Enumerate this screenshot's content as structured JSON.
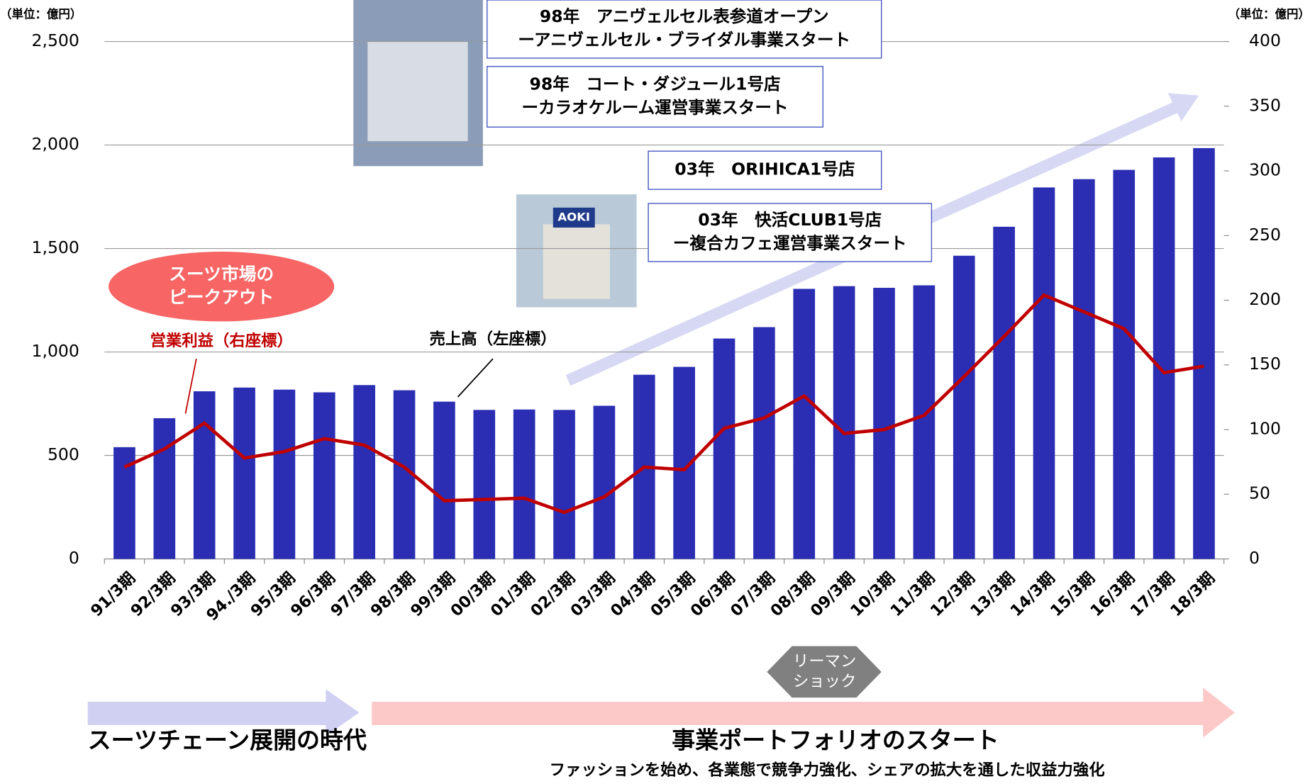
{
  "chart_data": {
    "type": "bar_line",
    "y_unit_label": "（単位：億円）",
    "y2_unit_label": "（単位：億円）",
    "categories": [
      "91/3期",
      "92/3期",
      "93/3期",
      "94./3期",
      "95/3期",
      "96/3期",
      "97/3期",
      "98/3期",
      "99/3期",
      "00/3期",
      "01/3期",
      "02/3期",
      "03/3期",
      "04/3期",
      "05/3期",
      "06/3期",
      "07/3期",
      "08/3期",
      "09/3期",
      "10/3期",
      "11/3期",
      "12/3期",
      "13/3期",
      "14/3期",
      "15/3期",
      "16/3期",
      "17/3期",
      "18/3期"
    ],
    "series": [
      {
        "name": "売上高（左座標）",
        "color": "#2b2eb3",
        "type": "bar",
        "values": [
          540,
          680,
          810,
          828,
          818,
          805,
          840,
          815,
          760,
          720,
          722,
          720,
          740,
          890,
          928,
          1065,
          1120,
          1305,
          1318,
          1310,
          1322,
          1465,
          1605,
          1795,
          1835,
          1880,
          1940,
          1985
        ]
      },
      {
        "name": "営業利益（右座標）",
        "color": "#c00000",
        "type": "line",
        "axis": "y2",
        "values": [
          71,
          85,
          105,
          78,
          83,
          93,
          88,
          71,
          45,
          46,
          47,
          36,
          48,
          71,
          69,
          101,
          109,
          126,
          97,
          100,
          111,
          141,
          172,
          204,
          191,
          178,
          144,
          149
        ]
      }
    ],
    "ylim": [
      0,
      2500
    ],
    "yticks": [
      0,
      500,
      {
        "value": 1000,
        "label": "1,000"
      },
      {
        "value": 1500,
        "label": "1,500"
      },
      {
        "value": 2000,
        "label": "2,000"
      },
      {
        "value": 2500,
        "label": "2,500"
      }
    ],
    "y2lim": [
      0,
      400
    ],
    "y2ticks": [
      0,
      50,
      100,
      150,
      200,
      250,
      300,
      350,
      400
    ],
    "grid": true,
    "boxes": [
      {
        "lines": [
          "98年　アニヴェルセル表参道オープン",
          "ーアニヴェルセル・ブライダル事業スタート"
        ]
      },
      {
        "lines": [
          "98年　コート・ダジュール1号店",
          "ーカラオケルーム運営事業スタート"
        ]
      },
      {
        "lines": [
          "03年　ORIHICA1号店"
        ]
      },
      {
        "lines": [
          "03年　快活CLUB1号店",
          "ー複合カフェ運営事業スタート"
        ]
      }
    ],
    "photo_label": "AOKI",
    "peak_label": [
      "スーツ市場の",
      "ピークアウト"
    ],
    "lehman_label": [
      "リーマン",
      "ショック"
    ],
    "era1": "スーツチェーン展開の時代",
    "era2": "事業ポートフォリオのスタート",
    "era2_sub": "ファッションを始め、各業態で競争力強化、シェアの拡大を通した収益力強化"
  }
}
